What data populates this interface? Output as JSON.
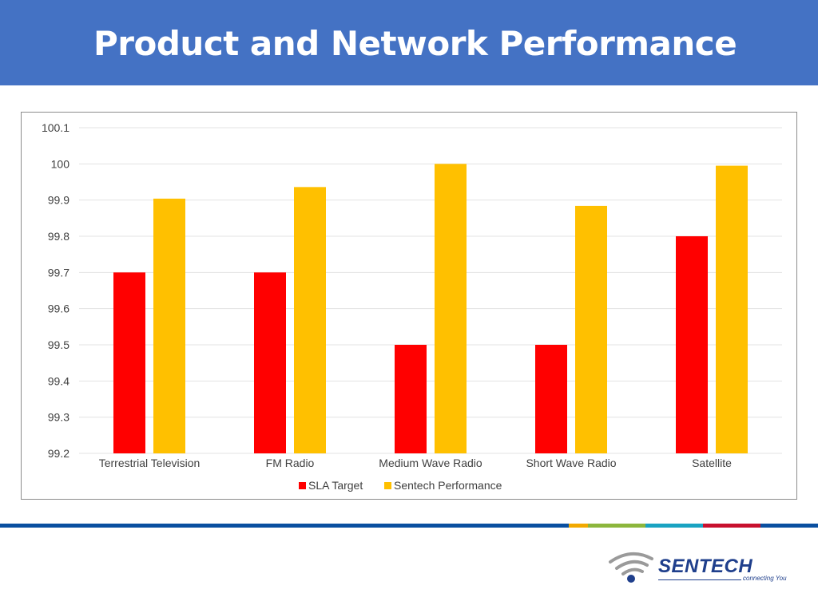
{
  "header": {
    "title": "Product and Network Performance"
  },
  "colors": {
    "banner": "#4472c4",
    "sla": "#ff0000",
    "sentech": "#ffc000"
  },
  "footer_stripes": [
    "#0a4fa0",
    "#f2a900",
    "#8cb63c",
    "#1aa3c2",
    "#c8102e",
    "#0a4fa0"
  ],
  "logo": {
    "name": "SENTECH",
    "tagline": "connecting You",
    "icon": "wifi-signal-icon",
    "color": "#1f3f8c"
  },
  "chart_data": {
    "type": "bar",
    "title": "",
    "xlabel": "",
    "ylabel": "",
    "categories": [
      "Terrestrial Television",
      "FM Radio",
      "Medium Wave Radio",
      "Short Wave Radio",
      "Satellite"
    ],
    "series": [
      {
        "name": "SLA Target",
        "color": "#ff0000",
        "values": [
          99.7,
          99.7,
          99.5,
          99.5,
          99.8
        ]
      },
      {
        "name": "Sentech Performance",
        "color": "#ffc000",
        "values": [
          99.904,
          99.936,
          100.0,
          99.884,
          99.995
        ]
      }
    ],
    "ylim": [
      99.2,
      100.1
    ],
    "yticks": [
      "99.2",
      "99.3",
      "99.4",
      "99.5",
      "99.6",
      "99.7",
      "99.8",
      "99.9",
      "100",
      "100.1"
    ],
    "grid": true,
    "legend": "bottom"
  }
}
